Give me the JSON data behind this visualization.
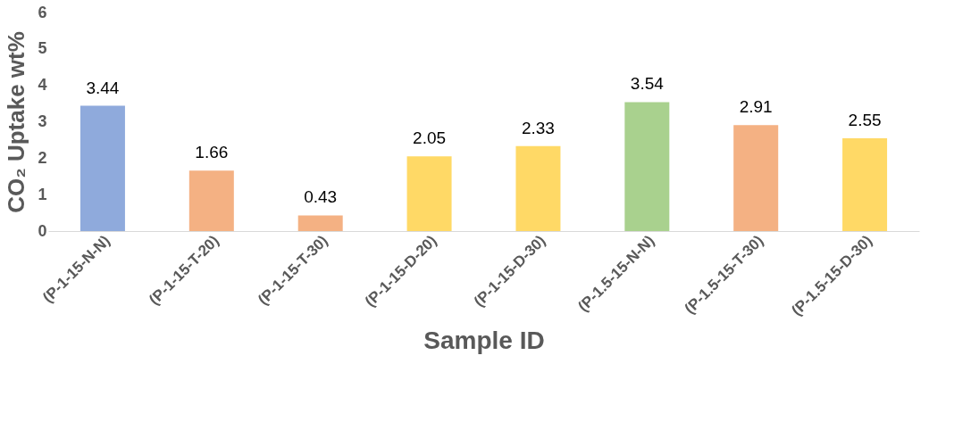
{
  "chart_data": {
    "type": "bar",
    "xlabel": "Sample ID",
    "ylabel": "CO₂ Uptake wt%",
    "categories": [
      "(P-1-15-N-N)",
      "(P-1-15-T-20)",
      "(P-1-15-T-30)",
      "(P-1-15-D-20)",
      "(P-1-15-D-30)",
      "(P-1.5-15-N-N)",
      "(P-1.5-15-T-30)",
      "(P-1.5-15-D-30)"
    ],
    "values": [
      3.44,
      1.66,
      0.43,
      2.05,
      2.33,
      3.54,
      2.91,
      2.55
    ],
    "colors": [
      "#8faadc",
      "#f4b183",
      "#f4b183",
      "#ffd966",
      "#ffd966",
      "#a9d18e",
      "#f4b183",
      "#ffd966"
    ],
    "ylim": [
      0,
      6
    ],
    "yticks": [
      0,
      1,
      2,
      3,
      4,
      5,
      6
    ],
    "grid": false,
    "data_labels": true
  }
}
